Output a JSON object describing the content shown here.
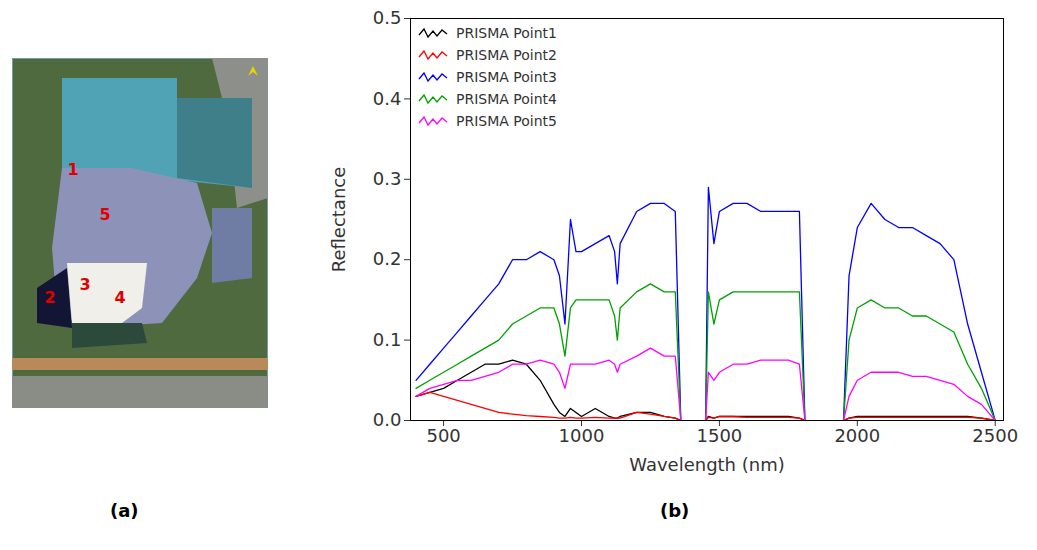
{
  "image": {
    "panel_label": "(a)",
    "point_labels": [
      "1",
      "2",
      "3",
      "4",
      "5"
    ]
  },
  "chart_data": {
    "type": "line",
    "panel_label": "(b)",
    "x_label": "Wavelength (nm)",
    "y_label": "Reflectance",
    "xlim": [
      380,
      2530
    ],
    "ylim": [
      0,
      0.5
    ],
    "xticks": [
      500,
      1000,
      1500,
      2000,
      2500
    ],
    "yticks": [
      {
        "value": 0,
        "label": "0.0"
      },
      0.1,
      0.2,
      0.3,
      0.4,
      0.5
    ],
    "legend": "upper left",
    "x": [
      400,
      450,
      500,
      550,
      600,
      650,
      700,
      750,
      800,
      850,
      900,
      920,
      940,
      960,
      980,
      1000,
      1050,
      1100,
      1120,
      1130,
      1140,
      1200,
      1250,
      1300,
      1340,
      1360,
      1400,
      1450,
      1460,
      1480,
      1500,
      1550,
      1600,
      1650,
      1700,
      1750,
      1790,
      1810,
      1900,
      1950,
      1970,
      2000,
      2050,
      2100,
      2150,
      2200,
      2250,
      2300,
      2350,
      2400,
      2450,
      2500
    ],
    "series": [
      {
        "name": "PRISMA Point1",
        "color": "#000000",
        "values": [
          0.03,
          0.035,
          0.04,
          0.05,
          0.06,
          0.07,
          0.07,
          0.075,
          0.07,
          0.05,
          0.02,
          0.01,
          0.005,
          0.015,
          0.01,
          0.005,
          0.015,
          0.005,
          0.003,
          0.003,
          0.005,
          0.01,
          0.01,
          0.005,
          0.003,
          0,
          null,
          0,
          0.005,
          0.003,
          0.005,
          0.005,
          0.005,
          0.005,
          0.005,
          0.005,
          0.003,
          0,
          null,
          0,
          0.003,
          0.005,
          0.005,
          0.005,
          0.005,
          0.005,
          0.005,
          0.005,
          0.005,
          0.005,
          0.003,
          0
        ]
      },
      {
        "name": "PRISMA Point2",
        "color": "#ff0000",
        "values": [
          0.03,
          0.035,
          0.03,
          0.025,
          0.02,
          0.015,
          0.01,
          0.008,
          0.006,
          0.005,
          0.004,
          0.003,
          0.003,
          0.004,
          0.003,
          0.003,
          0.004,
          0.003,
          0.003,
          0.003,
          0.003,
          0.01,
          0.008,
          0.005,
          0.003,
          0,
          null,
          0,
          0.004,
          0.003,
          0.005,
          0.005,
          0.004,
          0.004,
          0.004,
          0.004,
          0.003,
          0,
          null,
          0,
          0.003,
          0.004,
          0.004,
          0.004,
          0.004,
          0.004,
          0.004,
          0.004,
          0.004,
          0.004,
          0.003,
          0
        ]
      },
      {
        "name": "PRISMA Point3",
        "color": "#0000ff",
        "values": [
          0.05,
          0.07,
          0.09,
          0.11,
          0.13,
          0.15,
          0.17,
          0.2,
          0.2,
          0.21,
          0.2,
          0.18,
          0.12,
          0.25,
          0.21,
          0.21,
          0.22,
          0.23,
          0.21,
          0.17,
          0.22,
          0.26,
          0.27,
          0.27,
          0.26,
          0,
          null,
          0,
          0.29,
          0.22,
          0.26,
          0.27,
          0.27,
          0.26,
          0.26,
          0.26,
          0.26,
          0,
          null,
          0,
          0.18,
          0.24,
          0.27,
          0.25,
          0.24,
          0.24,
          0.23,
          0.22,
          0.2,
          0.12,
          0.06,
          0
        ]
      },
      {
        "name": "PRISMA Point4",
        "color": "#00a000",
        "values": [
          0.04,
          0.05,
          0.06,
          0.07,
          0.08,
          0.09,
          0.1,
          0.12,
          0.13,
          0.14,
          0.14,
          0.12,
          0.08,
          0.14,
          0.15,
          0.15,
          0.15,
          0.15,
          0.13,
          0.1,
          0.14,
          0.16,
          0.17,
          0.16,
          0.16,
          0,
          null,
          0,
          0.16,
          0.12,
          0.15,
          0.16,
          0.16,
          0.16,
          0.16,
          0.16,
          0.16,
          0,
          null,
          0,
          0.1,
          0.14,
          0.15,
          0.14,
          0.14,
          0.13,
          0.13,
          0.12,
          0.11,
          0.07,
          0.04,
          0
        ]
      },
      {
        "name": "PRISMA Point5",
        "color": "#ff00ff",
        "values": [
          0.03,
          0.04,
          0.045,
          0.05,
          0.05,
          0.055,
          0.06,
          0.07,
          0.07,
          0.075,
          0.07,
          0.06,
          0.04,
          0.07,
          0.07,
          0.07,
          0.07,
          0.075,
          0.07,
          0.06,
          0.07,
          0.08,
          0.09,
          0.08,
          0.08,
          0,
          null,
          0,
          0.06,
          0.05,
          0.06,
          0.07,
          0.07,
          0.075,
          0.075,
          0.075,
          0.07,
          0,
          null,
          0,
          0.03,
          0.05,
          0.06,
          0.06,
          0.06,
          0.055,
          0.055,
          0.05,
          0.045,
          0.03,
          0.02,
          0
        ]
      }
    ]
  }
}
